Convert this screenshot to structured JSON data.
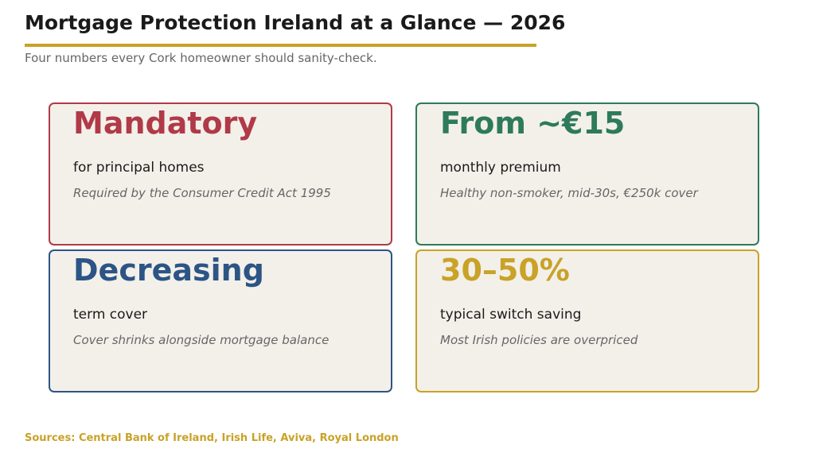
{
  "header": {
    "title": "Mortgage Protection Ireland at a Glance — 2026",
    "subtitle": "Four numbers every Cork homeowner should sanity-check.",
    "rule_color": "#c9a227"
  },
  "cards": [
    {
      "stat": "Mandatory",
      "label": "for principal homes",
      "note": "Required by the Consumer Credit Act 1995",
      "color": "#b03a48"
    },
    {
      "stat": "From ~€15",
      "label": "monthly premium",
      "note": "Healthy non-smoker, mid-30s, €250k cover",
      "color": "#2e7a5a"
    },
    {
      "stat": "Decreasing",
      "label": "term cover",
      "note": "Cover shrinks alongside mortgage balance",
      "color": "#2c5585"
    },
    {
      "stat": "30–50%",
      "label": "typical switch saving",
      "note": "Most Irish policies are overpriced",
      "color": "#c9a227"
    }
  ],
  "footer": {
    "sources": "Sources: Central Bank of Ireland, Irish Life, Aviva, Royal London",
    "color": "#c9a227"
  }
}
